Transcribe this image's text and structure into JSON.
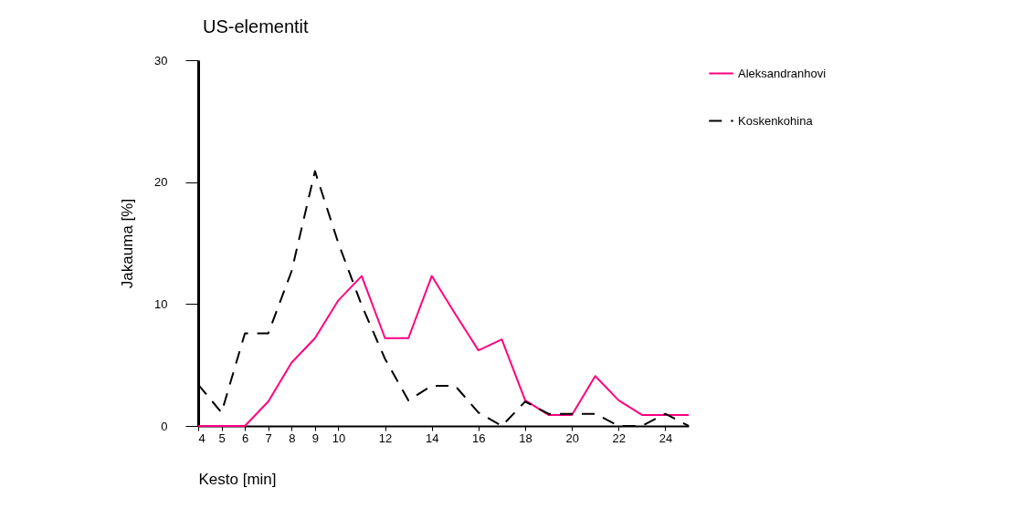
{
  "chart_data": {
    "type": "line",
    "title": "US-elementit",
    "xlabel": "Kesto [min]",
    "ylabel": "Jakauma [%]",
    "x": [
      4,
      5,
      6,
      7,
      8,
      9,
      10,
      11,
      12,
      13,
      14,
      15,
      16,
      17,
      18,
      19,
      20,
      21,
      22,
      23,
      24,
      25
    ],
    "series": [
      {
        "name": "Aleksandranhovi",
        "color": "#ff0080",
        "line_style": "solid",
        "values": [
          0,
          0,
          0,
          2.0,
          5.2,
          7.2,
          10.3,
          12.3,
          7.2,
          7.2,
          12.3,
          9.2,
          6.2,
          7.1,
          2.1,
          0.9,
          0.9,
          4.1,
          2.1,
          0.9,
          0.9,
          0.9
        ]
      },
      {
        "name": "Koskenkohina",
        "color": "#000000",
        "line_style": "dashed",
        "values": [
          3.4,
          1.1,
          7.6,
          7.6,
          12.7,
          20.9,
          15.0,
          9.9,
          5.5,
          2.1,
          3.3,
          3.3,
          1.1,
          0,
          2.0,
          1.0,
          1.0,
          1.0,
          0,
          0,
          1.0,
          0
        ]
      }
    ],
    "xlim": [
      4,
      25
    ],
    "xticks": [
      4,
      5,
      6,
      7,
      8,
      9,
      10,
      12,
      14,
      16,
      18,
      20,
      22,
      24
    ],
    "ylim": [
      0,
      30
    ],
    "yticks": [
      0,
      10,
      20,
      30
    ],
    "grid": false,
    "legend": "right"
  }
}
